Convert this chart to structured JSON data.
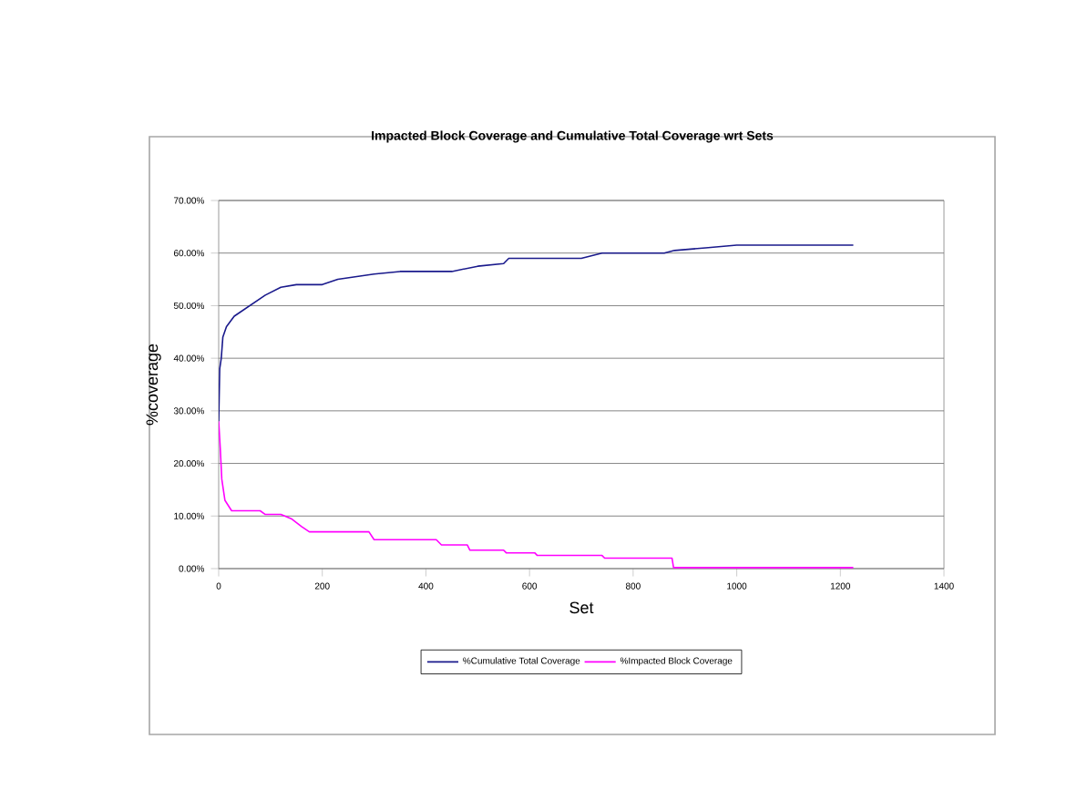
{
  "chart_data": {
    "type": "line",
    "title": "Impacted Block Coverage and Cumulative Total Coverage wrt Sets",
    "xlabel": "Set",
    "ylabel": "%coverage",
    "xlim": [
      0,
      1400
    ],
    "xticks": [
      0,
      200,
      400,
      600,
      800,
      1000,
      1200,
      1400
    ],
    "ylim": [
      0,
      70
    ],
    "yticks": [
      {
        "value": 0,
        "label": "0.00%"
      },
      {
        "value": 10,
        "label": "10.00%"
      },
      {
        "value": 20,
        "label": "20.00%"
      },
      {
        "value": 30,
        "label": "30.00%"
      },
      {
        "value": 40,
        "label": "40.00%"
      },
      {
        "value": 50,
        "label": "50.00%"
      },
      {
        "value": 60,
        "label": "60.00%"
      },
      {
        "value": 70,
        "label": "70.00%"
      }
    ],
    "grid": "y",
    "legend": "bottom",
    "marker": "none",
    "line_style": "solid",
    "series": [
      {
        "name": "%Cumulative Total Coverage",
        "color": "#1a1a8c",
        "x": [
          0,
          2,
          5,
          8,
          15,
          30,
          60,
          90,
          120,
          150,
          200,
          230,
          300,
          350,
          450,
          500,
          550,
          560,
          700,
          740,
          860,
          880,
          940,
          1000,
          1225
        ],
        "values": [
          28,
          38,
          40,
          44,
          46,
          48,
          50,
          52,
          53.5,
          54,
          54,
          55,
          56,
          56.5,
          56.5,
          57.5,
          58,
          59,
          59,
          60,
          60,
          60.5,
          61,
          61.5,
          61.5
        ]
      },
      {
        "name": "%Impacted Block Coverage",
        "color": "#ff00ff",
        "x": [
          0,
          3,
          6,
          12,
          25,
          80,
          90,
          120,
          140,
          160,
          175,
          290,
          300,
          420,
          430,
          480,
          485,
          550,
          555,
          610,
          615,
          740,
          745,
          875,
          878,
          1225
        ],
        "values": [
          28,
          23,
          17,
          13,
          11,
          11,
          10.3,
          10.3,
          9.5,
          8,
          7,
          7,
          5.5,
          5.5,
          4.5,
          4.5,
          3.5,
          3.5,
          3,
          3,
          2.5,
          2.5,
          2,
          2,
          0.2,
          0.2
        ]
      }
    ]
  }
}
